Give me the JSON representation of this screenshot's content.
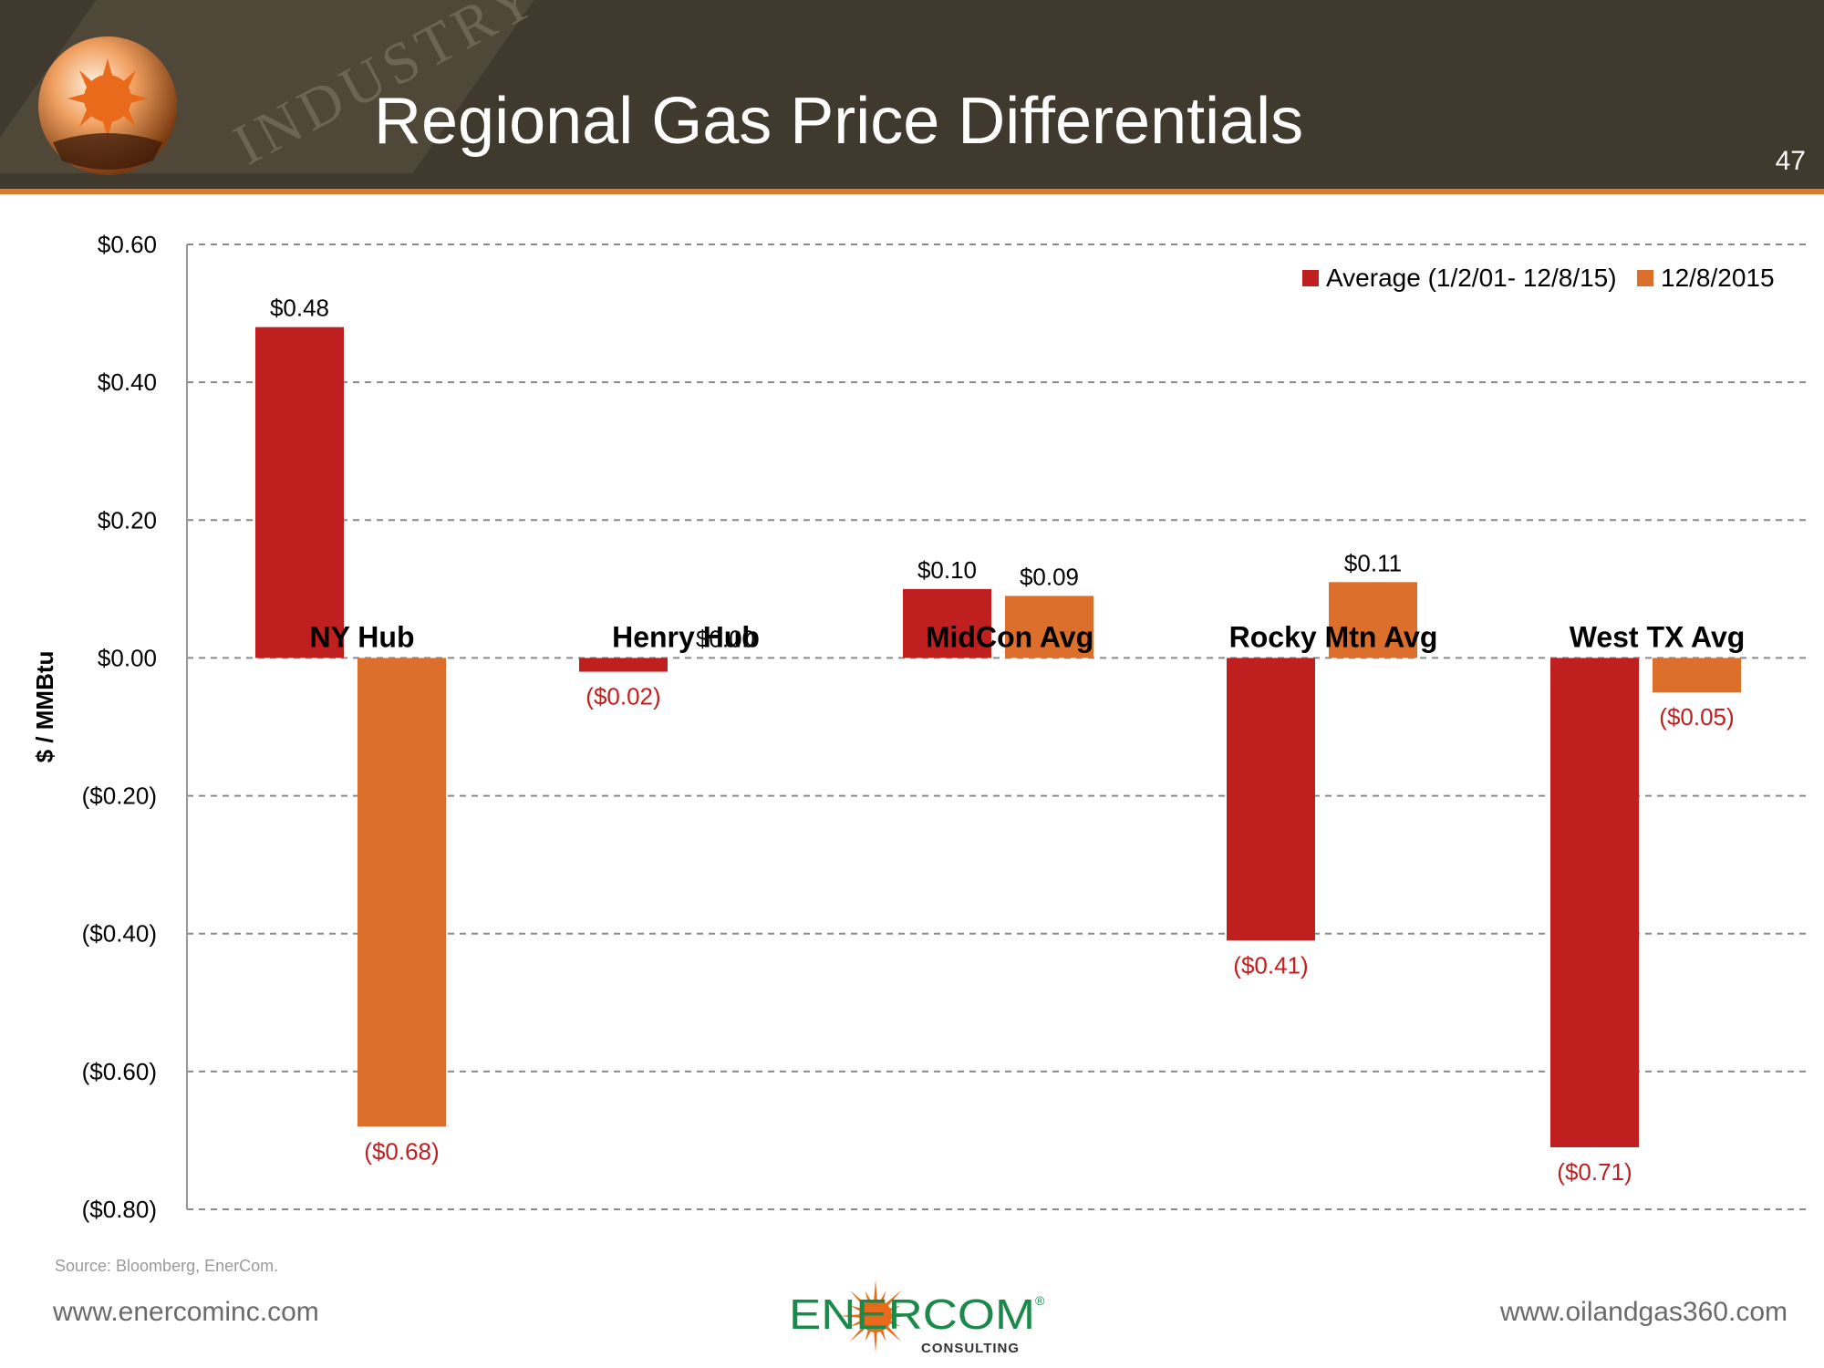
{
  "slide": {
    "title": "Regional Gas Price Differentials",
    "page_number": "47",
    "banner_word": "INDUSTRY",
    "source": "Source: Bloomberg, EnerCom.",
    "url_left": "www.enercominc.com",
    "url_right": "www.oilandgas360.com",
    "logo_text": "ENERCOM",
    "logo_subtext": "CONSULTING",
    "logo_mark": "®"
  },
  "colors": {
    "series_avg": "#c01f1f",
    "series_latest": "#dc6f2b",
    "negative_label": "#c01f1f",
    "banner": "#403a2e",
    "accent": "#e07a2a"
  },
  "chart_data": {
    "type": "bar",
    "title": "",
    "xlabel": "",
    "ylabel": "$ / MMBtu",
    "ylim": [
      -0.8,
      0.6
    ],
    "y_ticks": [
      0.6,
      0.4,
      0.2,
      0.0,
      -0.2,
      -0.4,
      -0.6,
      -0.8
    ],
    "y_tick_labels": [
      "$0.60",
      "$0.40",
      "$0.20",
      "$0.00",
      "($0.20)",
      "($0.40)",
      "($0.60)",
      "($0.80)"
    ],
    "grid": true,
    "legend_position": "top-right",
    "categories": [
      "NY Hub",
      "Henry Hub",
      "MidCon Avg",
      "Rocky Mtn Avg",
      "West TX Avg"
    ],
    "series": [
      {
        "name": "Average (1/2/01- 12/8/15)",
        "values": [
          0.48,
          -0.02,
          0.1,
          -0.41,
          -0.71
        ],
        "labels": [
          "$0.48",
          "($0.02)",
          "$0.10",
          "($0.41)",
          "($0.71)"
        ]
      },
      {
        "name": "12/8/2015",
        "values": [
          -0.68,
          0.0,
          0.09,
          0.11,
          -0.05
        ],
        "labels": [
          "($0.68)",
          "$0.00",
          "$0.09",
          "$0.11",
          "($0.05)"
        ]
      }
    ]
  }
}
